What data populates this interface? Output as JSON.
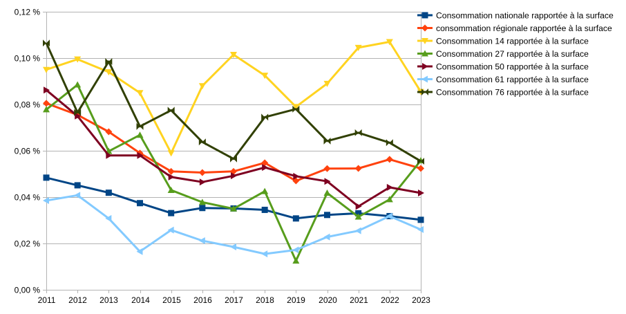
{
  "chart_data": {
    "type": "line",
    "x": [
      2011,
      2012,
      2013,
      2014,
      2015,
      2016,
      2017,
      2018,
      2019,
      2020,
      2021,
      2022,
      2023
    ],
    "x_tick_labels": [
      "2011",
      "2012",
      "2013",
      "2014",
      "2015",
      "2016",
      "2017",
      "2018",
      "2019",
      "2020",
      "2021",
      "2022",
      "2023"
    ],
    "ylim": [
      0,
      0.12
    ],
    "y_ticks": [
      0,
      0.02,
      0.04,
      0.06,
      0.08,
      0.1,
      0.12
    ],
    "y_tick_labels": [
      "0,00 %",
      "0,02 %",
      "0,04 %",
      "0,06 %",
      "0,08 %",
      "0,10 %",
      "0,12 %"
    ],
    "grid": true,
    "legend_position": "top-right",
    "series": [
      {
        "name": "Consommation nationale rapportée à la surface",
        "color": "#004586",
        "marker": "square",
        "values": [
          0.0484,
          0.0451,
          0.0419,
          0.0374,
          0.0331,
          0.0353,
          0.0351,
          0.0345,
          0.0308,
          0.0323,
          0.033,
          0.0318,
          0.0302
        ]
      },
      {
        "name": "consommation régionale rapportée à la surface",
        "color": "#ff420e",
        "marker": "diamond",
        "values": [
          0.0805,
          0.0755,
          0.0682,
          0.059,
          0.0511,
          0.0506,
          0.0511,
          0.0548,
          0.047,
          0.0523,
          0.0524,
          0.0563,
          0.0524
        ]
      },
      {
        "name": "Consommation 14 rapportée à la surface",
        "color": "#ffd320",
        "marker": "triangle-down",
        "values": [
          0.095,
          0.0995,
          0.094,
          0.085,
          0.059,
          0.088,
          0.1015,
          0.0925,
          0.079,
          0.089,
          0.1045,
          0.107,
          0.0855
        ]
      },
      {
        "name": "Consommation 27 rapportée à la surface",
        "color": "#579d1c",
        "marker": "triangle-up",
        "values": [
          0.0778,
          0.0885,
          0.0598,
          0.0668,
          0.043,
          0.0378,
          0.035,
          0.0425,
          0.0125,
          0.0418,
          0.0315,
          0.039,
          0.0558
        ]
      },
      {
        "name": "Consommation 50 rapportée à la surface",
        "color": "#7e0021",
        "marker": "triangle-right",
        "values": [
          0.0862,
          0.075,
          0.058,
          0.058,
          0.0487,
          0.0465,
          0.0492,
          0.0528,
          0.049,
          0.0468,
          0.036,
          0.0442,
          0.0418
        ]
      },
      {
        "name": "Consommation 61 rapportée à la surface",
        "color": "#83caff",
        "marker": "triangle-left",
        "values": [
          0.0385,
          0.0408,
          0.0308,
          0.0165,
          0.0258,
          0.0212,
          0.0185,
          0.0155,
          0.0172,
          0.0228,
          0.0255,
          0.0318,
          0.026
        ]
      },
      {
        "name": "Consommation 76 rapportée à la surface",
        "color": "#314004",
        "marker": "bowtie",
        "values": [
          0.1065,
          0.0765,
          0.0985,
          0.0705,
          0.0775,
          0.0638,
          0.0565,
          0.0745,
          0.078,
          0.0642,
          0.0678,
          0.0635,
          0.0555
        ]
      }
    ]
  }
}
